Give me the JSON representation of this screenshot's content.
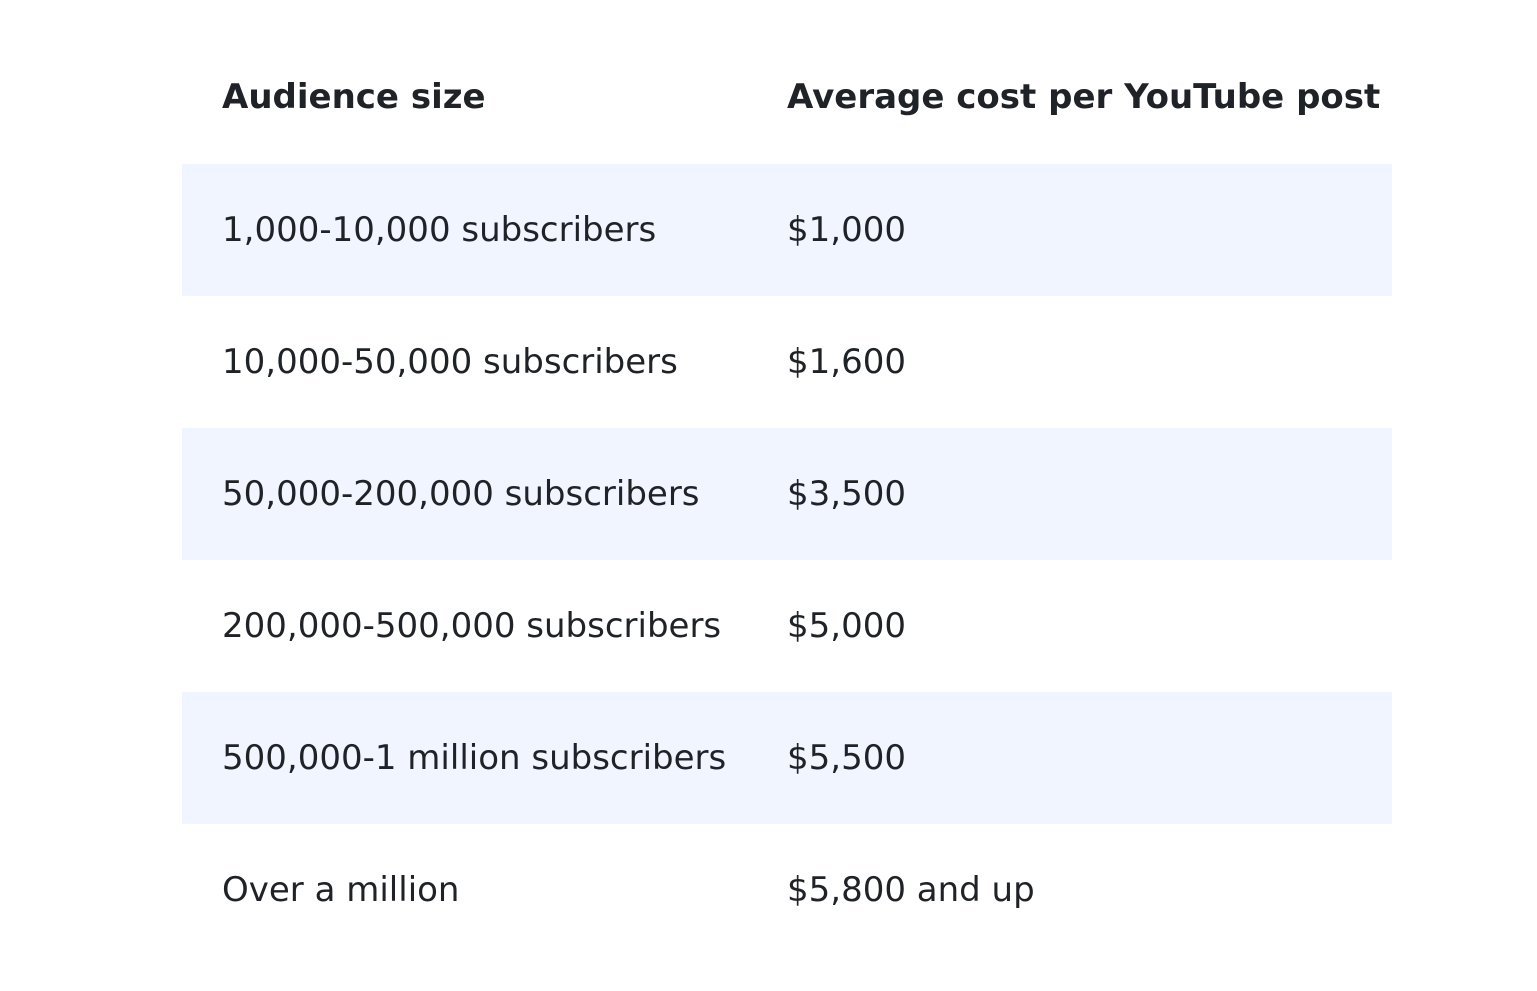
{
  "table": {
    "headers": [
      "Audience size",
      "Average cost per YouTube post"
    ],
    "rows": [
      [
        "1,000-10,000 subscribers",
        "$1,000"
      ],
      [
        "10,000-50,000 subscribers",
        "$1,600"
      ],
      [
        "50,000-200,000 subscribers",
        "$3,500"
      ],
      [
        "200,000-500,000 subscribers",
        "$5,000"
      ],
      [
        "500,000-1 million subscribers",
        "$5,500"
      ],
      [
        "Over a million",
        "$5,800 and up"
      ]
    ]
  },
  "colors": {
    "text": "#1f2226",
    "row_shade": "#f0f5ff",
    "background": "#ffffff"
  }
}
